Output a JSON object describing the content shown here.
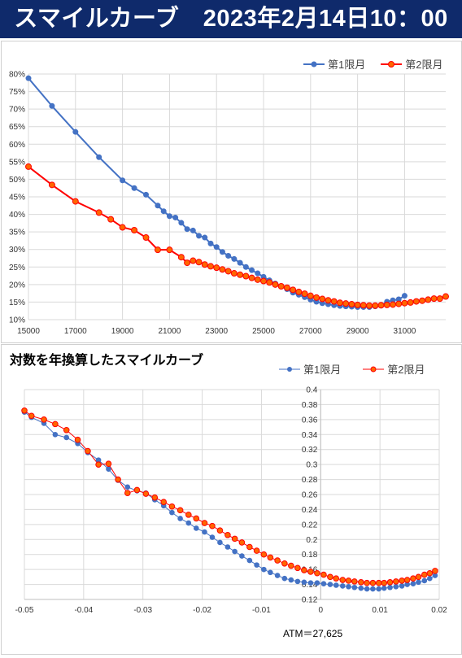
{
  "header": {
    "title": "スマイルカーブ　2023年2月14日10：00"
  },
  "colors": {
    "series1": "#4472c4",
    "series2": "#ff0000",
    "series2_marker_fill": "#ff6600",
    "header_bg": "#0f2a6b"
  },
  "legend": {
    "series1": "第1限月",
    "series2": "第2限月"
  },
  "atm_label": "ATM＝27,625",
  "chart_data": [
    {
      "type": "line",
      "title": "",
      "xlabel": "",
      "ylabel": "",
      "xlim": [
        15000,
        32750
      ],
      "ylim": [
        0.1,
        0.8
      ],
      "x_ticks": [
        "15000",
        "17000",
        "19000",
        "21000",
        "23000",
        "25000",
        "27000",
        "29000",
        "31000"
      ],
      "y_ticks": [
        "10%",
        "15%",
        "20%",
        "25%",
        "30%",
        "35%",
        "40%",
        "45%",
        "50%",
        "55%",
        "60%",
        "65%",
        "70%",
        "75%",
        "80%"
      ],
      "grid": true,
      "legend_position": "top-right",
      "series": [
        {
          "name": "第1限月",
          "x": [
            15000,
            16000,
            17000,
            18000,
            19000,
            19500,
            20000,
            20500,
            20750,
            21000,
            21250,
            21500,
            21750,
            22000,
            22250,
            22500,
            22750,
            23000,
            23250,
            23500,
            23750,
            24000,
            24250,
            24500,
            24750,
            25000,
            25250,
            25500,
            25750,
            26000,
            26250,
            26500,
            26750,
            27000,
            27250,
            27500,
            27750,
            28000,
            28250,
            28500,
            28750,
            29000,
            29250,
            29500,
            29750,
            30000,
            30250,
            30500,
            30750,
            31000
          ],
          "y": [
            0.788,
            0.709,
            0.635,
            0.563,
            0.497,
            0.475,
            0.456,
            0.425,
            0.409,
            0.395,
            0.391,
            0.376,
            0.358,
            0.354,
            0.339,
            0.334,
            0.317,
            0.307,
            0.293,
            0.282,
            0.273,
            0.262,
            0.25,
            0.241,
            0.232,
            0.222,
            0.212,
            0.203,
            0.195,
            0.187,
            0.177,
            0.171,
            0.164,
            0.157,
            0.151,
            0.147,
            0.144,
            0.141,
            0.139,
            0.138,
            0.137,
            0.136,
            0.136,
            0.136,
            0.138,
            0.14,
            0.151,
            0.155,
            0.158,
            0.168
          ]
        },
        {
          "name": "第2限月",
          "x": [
            15000,
            16000,
            17000,
            18000,
            18500,
            19000,
            19500,
            20000,
            20500,
            21000,
            21500,
            21750,
            22000,
            22250,
            22500,
            22750,
            23000,
            23250,
            23500,
            23750,
            24000,
            24250,
            24500,
            24750,
            25000,
            25250,
            25500,
            25750,
            26000,
            26250,
            26500,
            26750,
            27000,
            27250,
            27500,
            27750,
            28000,
            28250,
            28500,
            28750,
            29000,
            29250,
            29500,
            29750,
            30000,
            30250,
            30500,
            30750,
            31000,
            31250,
            31500,
            31750,
            32000,
            32250,
            32500,
            32750
          ],
          "y": [
            0.536,
            0.484,
            0.437,
            0.405,
            0.386,
            0.363,
            0.355,
            0.334,
            0.299,
            0.299,
            0.278,
            0.262,
            0.268,
            0.264,
            0.257,
            0.252,
            0.248,
            0.243,
            0.238,
            0.232,
            0.228,
            0.224,
            0.219,
            0.214,
            0.21,
            0.206,
            0.2,
            0.195,
            0.191,
            0.185,
            0.179,
            0.174,
            0.168,
            0.163,
            0.159,
            0.155,
            0.152,
            0.148,
            0.146,
            0.144,
            0.142,
            0.141,
            0.14,
            0.14,
            0.141,
            0.142,
            0.143,
            0.145,
            0.147,
            0.149,
            0.152,
            0.154,
            0.157,
            0.16,
            0.16,
            0.166
          ]
        }
      ]
    },
    {
      "type": "line",
      "title": "対数を年換算したスマイルカーブ",
      "xlabel": "",
      "ylabel": "",
      "xlim": [
        -0.05,
        0.02
      ],
      "ylim": [
        0.12,
        0.4
      ],
      "x_ticks": [
        "-0.05",
        "-0.04",
        "-0.03",
        "-0.02",
        "-0.01",
        "0",
        "0.01",
        "0.02"
      ],
      "y_ticks": [
        "0.12",
        "0.14",
        "0.16",
        "0.18",
        "0.2",
        "0.22",
        "0.24",
        "0.26",
        "0.28",
        "0.3",
        "0.32",
        "0.34",
        "0.36",
        "0.38",
        "0.4"
      ],
      "grid": true,
      "legend_position": "top-right",
      "series": [
        {
          "name": "第1限月",
          "x": [
            -0.05,
            -0.0488,
            -0.0467,
            -0.0448,
            -0.0429,
            -0.041,
            -0.0393,
            -0.0375,
            -0.0358,
            -0.0342,
            -0.0326,
            -0.031,
            -0.0295,
            -0.028,
            -0.0265,
            -0.0251,
            -0.0237,
            -0.0223,
            -0.021,
            -0.0196,
            -0.0183,
            -0.017,
            -0.0157,
            -0.0145,
            -0.0133,
            -0.012,
            -0.0108,
            -0.0096,
            -0.0085,
            -0.0073,
            -0.0061,
            -0.005,
            -0.0039,
            -0.0028,
            -0.0017,
            -0.0006,
            0.0005,
            0.0016,
            0.0026,
            0.0037,
            0.0047,
            0.0057,
            0.0068,
            0.0078,
            0.0088,
            0.0098,
            0.0107,
            0.0117,
            0.0127,
            0.0137,
            0.0146,
            0.0156,
            0.0165,
            0.0175,
            0.0184,
            0.0193
          ],
          "y": [
            0.37,
            0.363,
            0.355,
            0.34,
            0.336,
            0.328,
            0.316,
            0.306,
            0.294,
            0.279,
            0.27,
            0.265,
            0.262,
            0.253,
            0.245,
            0.236,
            0.228,
            0.222,
            0.215,
            0.21,
            0.203,
            0.196,
            0.19,
            0.184,
            0.178,
            0.172,
            0.166,
            0.16,
            0.156,
            0.152,
            0.148,
            0.146,
            0.144,
            0.143,
            0.142,
            0.142,
            0.141,
            0.14,
            0.139,
            0.138,
            0.137,
            0.136,
            0.135,
            0.134,
            0.134,
            0.134,
            0.135,
            0.136,
            0.137,
            0.138,
            0.14,
            0.141,
            0.143,
            0.145,
            0.148,
            0.152
          ]
        },
        {
          "name": "第2限月",
          "x": [
            -0.05,
            -0.0488,
            -0.0467,
            -0.0448,
            -0.0429,
            -0.041,
            -0.0393,
            -0.0375,
            -0.0358,
            -0.0342,
            -0.0326,
            -0.031,
            -0.0295,
            -0.028,
            -0.0265,
            -0.0251,
            -0.0237,
            -0.0223,
            -0.021,
            -0.0196,
            -0.0183,
            -0.017,
            -0.0157,
            -0.0145,
            -0.0133,
            -0.012,
            -0.0108,
            -0.0096,
            -0.0085,
            -0.0073,
            -0.0061,
            -0.005,
            -0.0039,
            -0.0028,
            -0.0017,
            -0.0006,
            0.0005,
            0.0016,
            0.0026,
            0.0037,
            0.0047,
            0.0057,
            0.0068,
            0.0078,
            0.0088,
            0.0098,
            0.0107,
            0.0117,
            0.0127,
            0.0137,
            0.0146,
            0.0156,
            0.0165,
            0.0175,
            0.0184,
            0.0193
          ],
          "y": [
            0.372,
            0.365,
            0.36,
            0.354,
            0.346,
            0.333,
            0.318,
            0.3,
            0.301,
            0.28,
            0.262,
            0.266,
            0.261,
            0.256,
            0.25,
            0.244,
            0.239,
            0.233,
            0.228,
            0.222,
            0.218,
            0.212,
            0.206,
            0.201,
            0.196,
            0.19,
            0.185,
            0.18,
            0.176,
            0.172,
            0.168,
            0.165,
            0.162,
            0.159,
            0.157,
            0.155,
            0.153,
            0.15,
            0.148,
            0.146,
            0.145,
            0.144,
            0.143,
            0.142,
            0.142,
            0.142,
            0.142,
            0.143,
            0.144,
            0.145,
            0.146,
            0.148,
            0.15,
            0.153,
            0.155,
            0.158
          ]
        }
      ]
    }
  ]
}
